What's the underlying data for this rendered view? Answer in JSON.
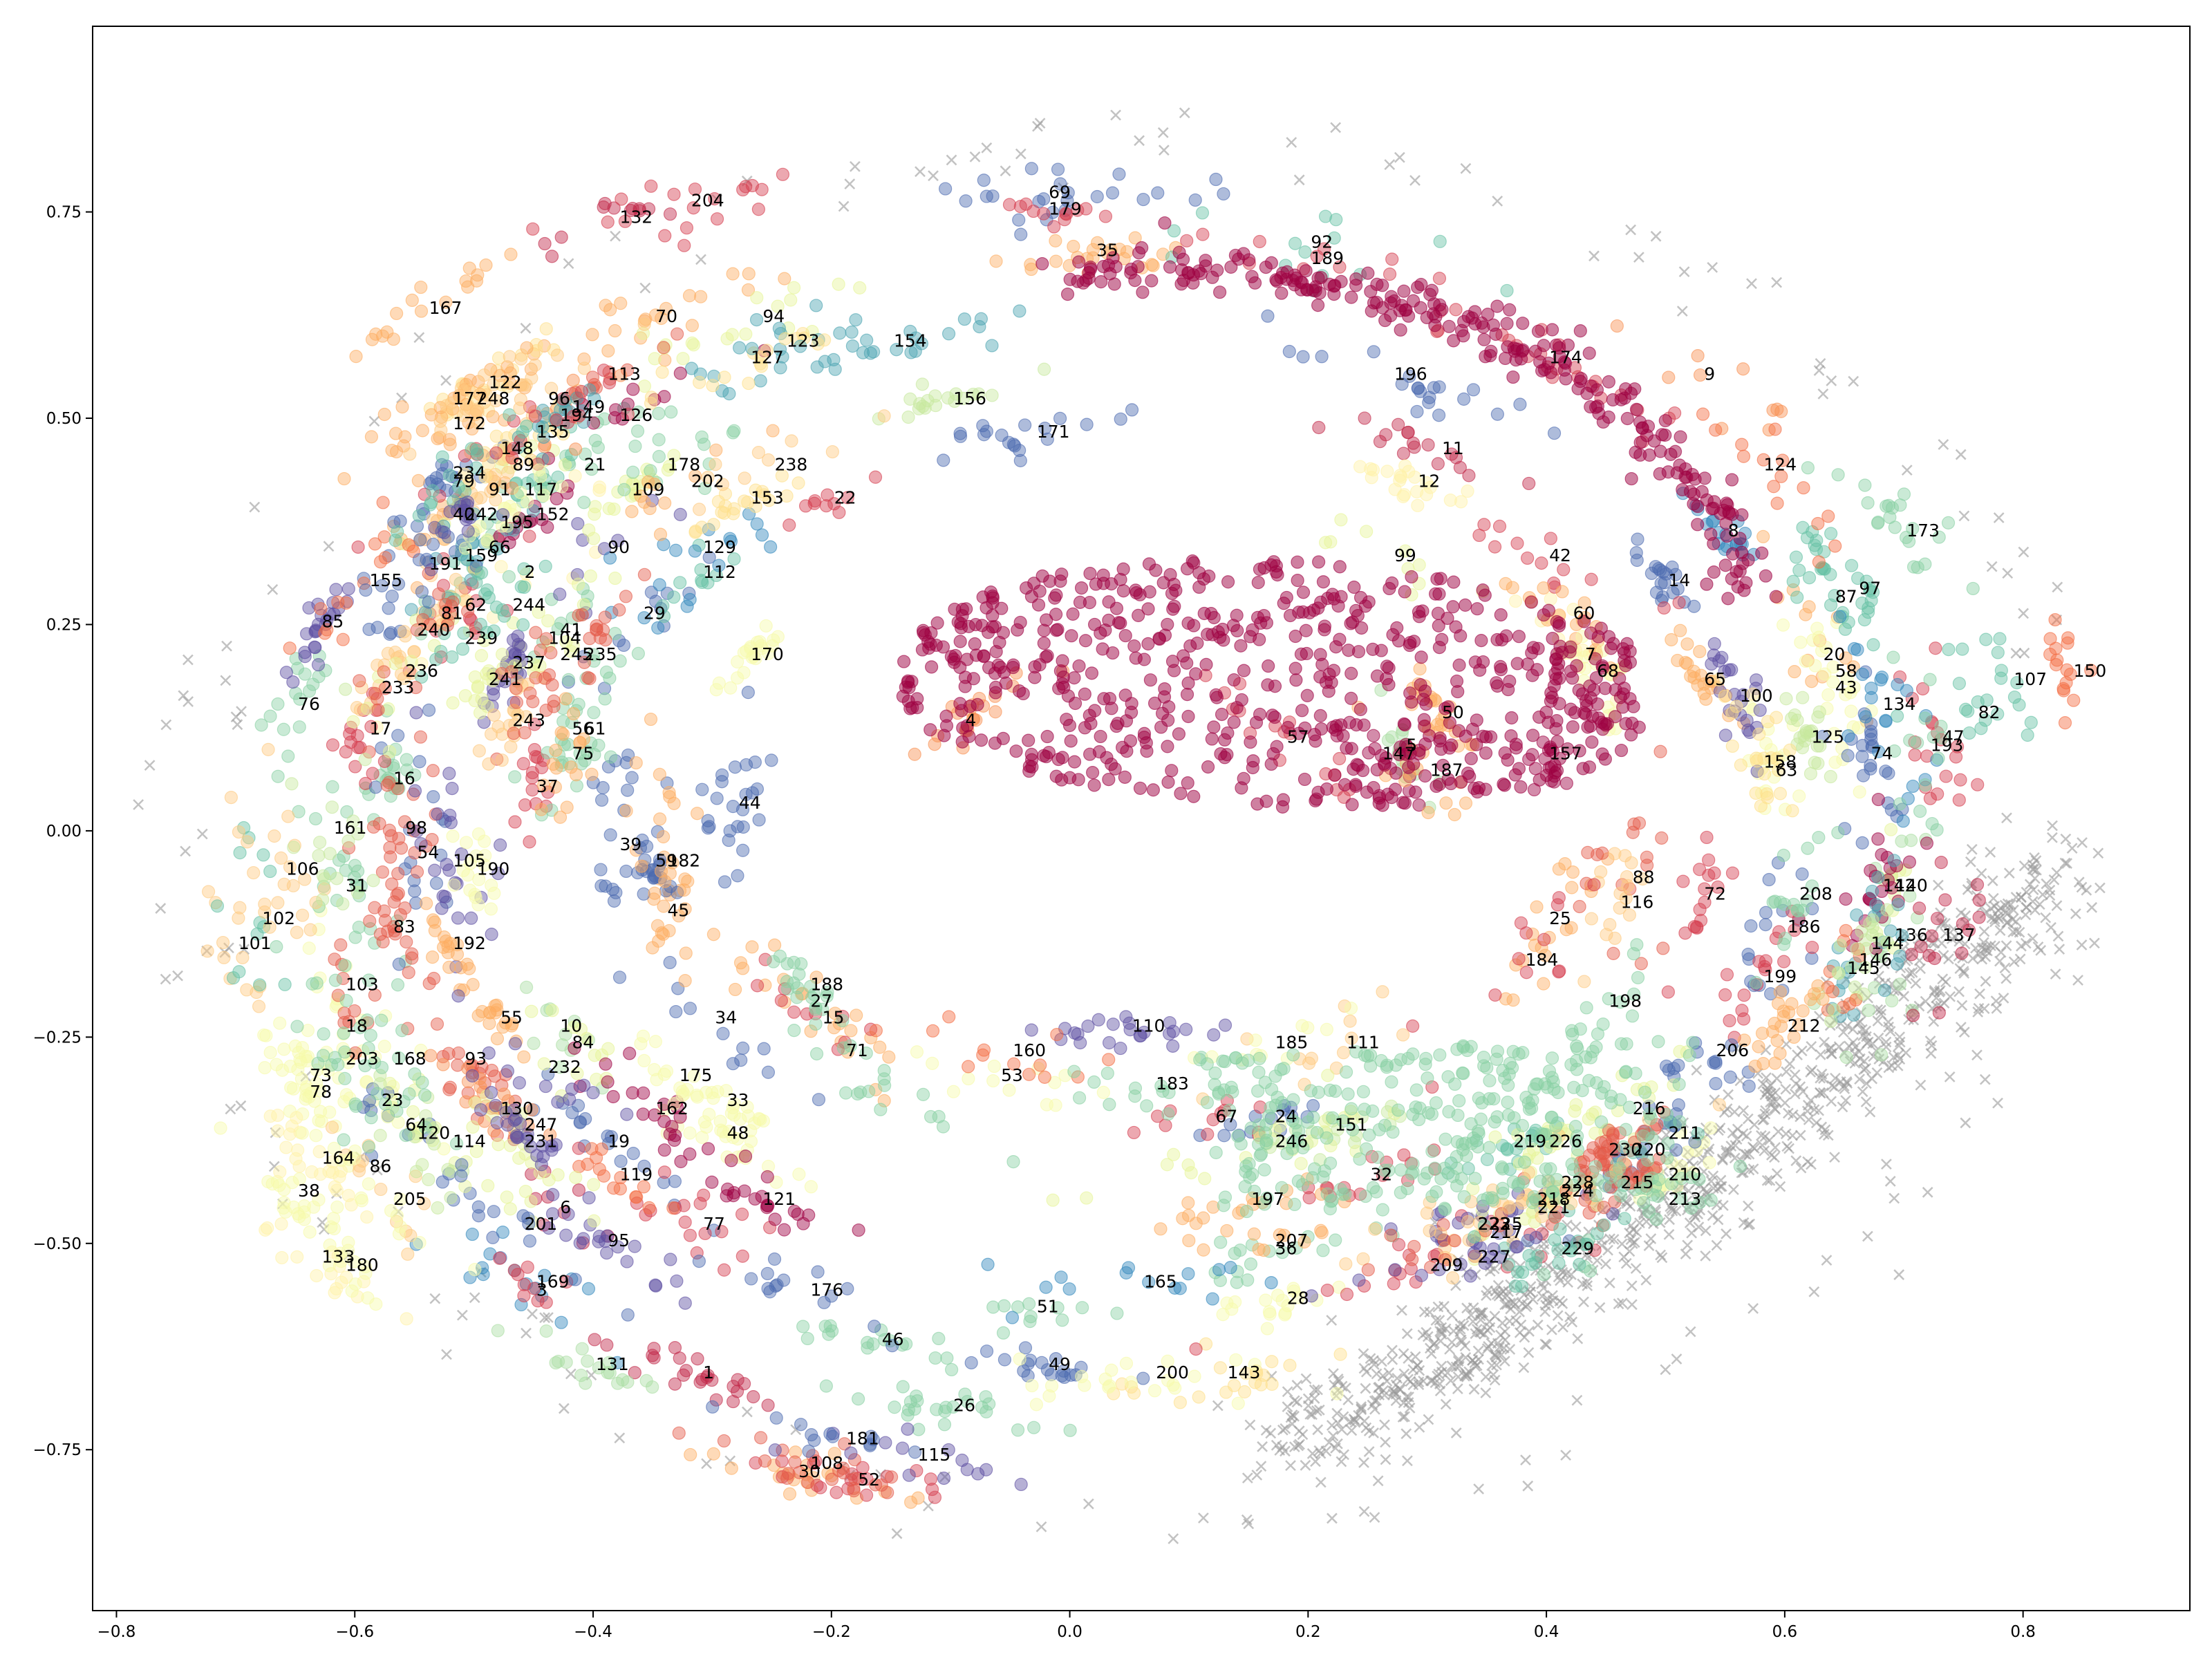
{
  "chart_data": {
    "type": "scatter",
    "title": "",
    "xlabel": "",
    "ylabel": "",
    "xlim": [
      -0.82,
      0.94
    ],
    "ylim": [
      -0.945,
      0.975
    ],
    "xticks": [
      -0.8,
      -0.6,
      -0.4,
      -0.2,
      0.0,
      0.2,
      0.4,
      0.6,
      0.8
    ],
    "xtick_labels": [
      "−0.8",
      "−0.6",
      "−0.4",
      "−0.2",
      "0.0",
      "0.2",
      "0.4",
      "0.6",
      "0.8"
    ],
    "yticks": [
      -0.75,
      -0.5,
      -0.25,
      0.0,
      0.25,
      0.5,
      0.75
    ],
    "ytick_labels": [
      "−0.75",
      "−0.50",
      "−0.25",
      "0.00",
      "0.25",
      "0.50",
      "0.75"
    ],
    "grid": false,
    "legend": "none",
    "noise_marker": "x",
    "noise_color": "#9a9a9a",
    "palette": [
      "#9e0142",
      "#c2294a",
      "#d53e4f",
      "#e45a49",
      "#f46d43",
      "#f99153",
      "#fdae61",
      "#fec980",
      "#fee08b",
      "#fff1a8",
      "#f6faaa",
      "#e6f598",
      "#c7e89e",
      "#abdda4",
      "#89d0a4",
      "#66c2a5",
      "#4ba4b1",
      "#3288bd",
      "#4c6bb0",
      "#5e4fa2"
    ],
    "clusters": [
      {
        "label": "1",
        "x": -0.31,
        "y": -0.66
      },
      {
        "label": "2",
        "x": -0.46,
        "y": 0.31
      },
      {
        "label": "3",
        "x": -0.45,
        "y": -0.56
      },
      {
        "label": "4",
        "x": -0.09,
        "y": 0.13
      },
      {
        "label": "5",
        "x": 0.28,
        "y": 0.1
      },
      {
        "label": "6",
        "x": -0.43,
        "y": -0.46
      },
      {
        "label": "7",
        "x": 0.43,
        "y": 0.21
      },
      {
        "label": "8",
        "x": 0.55,
        "y": 0.36
      },
      {
        "label": "9",
        "x": 0.53,
        "y": 0.55
      },
      {
        "label": "10",
        "x": -0.43,
        "y": -0.24
      },
      {
        "label": "11",
        "x": 0.31,
        "y": 0.46
      },
      {
        "label": "12",
        "x": 0.29,
        "y": 0.42
      },
      {
        "label": "14",
        "x": 0.5,
        "y": 0.3
      },
      {
        "label": "15",
        "x": -0.21,
        "y": -0.23
      },
      {
        "label": "16",
        "x": -0.57,
        "y": 0.06
      },
      {
        "label": "17",
        "x": -0.59,
        "y": 0.12
      },
      {
        "label": "18",
        "x": -0.61,
        "y": -0.24
      },
      {
        "label": "19",
        "x": -0.39,
        "y": -0.38
      },
      {
        "label": "20",
        "x": 0.63,
        "y": 0.21
      },
      {
        "label": "21",
        "x": -0.41,
        "y": 0.44
      },
      {
        "label": "22",
        "x": -0.2,
        "y": 0.4
      },
      {
        "label": "23",
        "x": -0.58,
        "y": -0.33
      },
      {
        "label": "24",
        "x": 0.17,
        "y": -0.35
      },
      {
        "label": "25",
        "x": 0.4,
        "y": -0.11
      },
      {
        "label": "26",
        "x": -0.1,
        "y": -0.7
      },
      {
        "label": "27",
        "x": -0.22,
        "y": -0.21
      },
      {
        "label": "28",
        "x": 0.18,
        "y": -0.57
      },
      {
        "label": "29",
        "x": -0.36,
        "y": 0.26
      },
      {
        "label": "30",
        "x": -0.23,
        "y": -0.78
      },
      {
        "label": "31",
        "x": -0.61,
        "y": -0.07
      },
      {
        "label": "32",
        "x": 0.25,
        "y": -0.42
      },
      {
        "label": "33",
        "x": -0.29,
        "y": -0.33
      },
      {
        "label": "34",
        "x": -0.3,
        "y": -0.23
      },
      {
        "label": "35",
        "x": 0.02,
        "y": 0.7
      },
      {
        "label": "36",
        "x": 0.17,
        "y": -0.51
      },
      {
        "label": "37",
        "x": -0.45,
        "y": 0.05
      },
      {
        "label": "38",
        "x": -0.65,
        "y": -0.44
      },
      {
        "label": "39",
        "x": -0.38,
        "y": -0.02
      },
      {
        "label": "40",
        "x": -0.52,
        "y": 0.38
      },
      {
        "label": "41",
        "x": -0.43,
        "y": 0.24
      },
      {
        "label": "42",
        "x": 0.4,
        "y": 0.33
      },
      {
        "label": "43",
        "x": 0.64,
        "y": 0.17
      },
      {
        "label": "44",
        "x": -0.28,
        "y": 0.03
      },
      {
        "label": "45",
        "x": -0.34,
        "y": -0.1
      },
      {
        "label": "46",
        "x": -0.16,
        "y": -0.62
      },
      {
        "label": "47",
        "x": 0.73,
        "y": 0.11
      },
      {
        "label": "48",
        "x": -0.29,
        "y": -0.37
      },
      {
        "label": "49",
        "x": -0.02,
        "y": -0.65
      },
      {
        "label": "50",
        "x": 0.31,
        "y": 0.14
      },
      {
        "label": "51",
        "x": -0.03,
        "y": -0.58
      },
      {
        "label": "52",
        "x": -0.18,
        "y": -0.79
      },
      {
        "label": "53",
        "x": -0.06,
        "y": -0.3
      },
      {
        "label": "54",
        "x": -0.55,
        "y": -0.03
      },
      {
        "label": "55",
        "x": -0.48,
        "y": -0.23
      },
      {
        "label": "56",
        "x": -0.42,
        "y": 0.12
      },
      {
        "label": "57",
        "x": 0.18,
        "y": 0.11
      },
      {
        "label": "58",
        "x": 0.64,
        "y": 0.19
      },
      {
        "label": "59",
        "x": -0.35,
        "y": -0.04
      },
      {
        "label": "60",
        "x": 0.42,
        "y": 0.26
      },
      {
        "label": "61",
        "x": -0.41,
        "y": 0.12
      },
      {
        "label": "62",
        "x": -0.51,
        "y": 0.27
      },
      {
        "label": "63",
        "x": 0.59,
        "y": 0.07
      },
      {
        "label": "64",
        "x": -0.56,
        "y": -0.36
      },
      {
        "label": "65",
        "x": 0.53,
        "y": 0.18
      },
      {
        "label": "66",
        "x": -0.49,
        "y": 0.34
      },
      {
        "label": "67",
        "x": 0.12,
        "y": -0.35
      },
      {
        "label": "68",
        "x": 0.44,
        "y": 0.19
      },
      {
        "label": "69",
        "x": -0.02,
        "y": 0.77
      },
      {
        "label": "70",
        "x": -0.35,
        "y": 0.62
      },
      {
        "label": "71",
        "x": -0.19,
        "y": -0.27
      },
      {
        "label": "72",
        "x": 0.53,
        "y": -0.08
      },
      {
        "label": "73",
        "x": -0.64,
        "y": -0.3
      },
      {
        "label": "74",
        "x": 0.67,
        "y": 0.09
      },
      {
        "label": "75",
        "x": -0.42,
        "y": 0.09
      },
      {
        "label": "76",
        "x": -0.65,
        "y": 0.15
      },
      {
        "label": "77",
        "x": -0.31,
        "y": -0.48
      },
      {
        "label": "78",
        "x": -0.64,
        "y": -0.32
      },
      {
        "label": "79",
        "x": -0.52,
        "y": 0.42
      },
      {
        "label": "81",
        "x": -0.53,
        "y": 0.26
      },
      {
        "label": "82",
        "x": 0.76,
        "y": 0.14
      },
      {
        "label": "83",
        "x": -0.57,
        "y": -0.12
      },
      {
        "label": "84",
        "x": -0.42,
        "y": -0.26
      },
      {
        "label": "85",
        "x": -0.63,
        "y": 0.25
      },
      {
        "label": "86",
        "x": -0.59,
        "y": -0.41
      },
      {
        "label": "87",
        "x": 0.64,
        "y": 0.28
      },
      {
        "label": "88",
        "x": 0.47,
        "y": -0.06
      },
      {
        "label": "89",
        "x": -0.47,
        "y": 0.44
      },
      {
        "label": "90",
        "x": -0.39,
        "y": 0.34
      },
      {
        "label": "91",
        "x": -0.49,
        "y": 0.41
      },
      {
        "label": "92",
        "x": 0.2,
        "y": 0.71
      },
      {
        "label": "93",
        "x": -0.51,
        "y": -0.28
      },
      {
        "label": "94",
        "x": -0.26,
        "y": 0.62
      },
      {
        "label": "95",
        "x": -0.39,
        "y": -0.5
      },
      {
        "label": "96",
        "x": -0.44,
        "y": 0.52
      },
      {
        "label": "97",
        "x": 0.66,
        "y": 0.29
      },
      {
        "label": "98",
        "x": -0.56,
        "y": 0.0
      },
      {
        "label": "99",
        "x": 0.27,
        "y": 0.33
      },
      {
        "label": "100",
        "x": 0.56,
        "y": 0.16
      },
      {
        "label": "101",
        "x": -0.7,
        "y": -0.14
      },
      {
        "label": "102",
        "x": -0.68,
        "y": -0.11
      },
      {
        "label": "103",
        "x": -0.61,
        "y": -0.19
      },
      {
        "label": "104",
        "x": -0.44,
        "y": 0.23
      },
      {
        "label": "105",
        "x": -0.52,
        "y": -0.04
      },
      {
        "label": "106",
        "x": -0.66,
        "y": -0.05
      },
      {
        "label": "107",
        "x": 0.79,
        "y": 0.18
      },
      {
        "label": "108",
        "x": -0.22,
        "y": -0.77
      },
      {
        "label": "109",
        "x": -0.37,
        "y": 0.41
      },
      {
        "label": "110",
        "x": 0.05,
        "y": -0.24
      },
      {
        "label": "111",
        "x": 0.23,
        "y": -0.26
      },
      {
        "label": "112",
        "x": -0.31,
        "y": 0.31
      },
      {
        "label": "113",
        "x": -0.39,
        "y": 0.55
      },
      {
        "label": "114",
        "x": -0.52,
        "y": -0.38
      },
      {
        "label": "115",
        "x": -0.13,
        "y": -0.76
      },
      {
        "label": "116",
        "x": 0.46,
        "y": -0.09
      },
      {
        "label": "117",
        "x": -0.46,
        "y": 0.41
      },
      {
        "label": "119",
        "x": -0.38,
        "y": -0.42
      },
      {
        "label": "120",
        "x": -0.55,
        "y": -0.37
      },
      {
        "label": "121",
        "x": -0.26,
        "y": -0.45
      },
      {
        "label": "122",
        "x": -0.49,
        "y": 0.54
      },
      {
        "label": "123",
        "x": -0.24,
        "y": 0.59
      },
      {
        "label": "124",
        "x": 0.58,
        "y": 0.44
      },
      {
        "label": "125",
        "x": 0.62,
        "y": 0.11
      },
      {
        "label": "126",
        "x": -0.38,
        "y": 0.5
      },
      {
        "label": "127",
        "x": -0.27,
        "y": 0.57
      },
      {
        "label": "129",
        "x": -0.31,
        "y": 0.34
      },
      {
        "label": "130",
        "x": -0.48,
        "y": -0.34
      },
      {
        "label": "131",
        "x": -0.4,
        "y": -0.65
      },
      {
        "label": "132",
        "x": -0.38,
        "y": 0.74
      },
      {
        "label": "133",
        "x": -0.63,
        "y": -0.52
      },
      {
        "label": "134",
        "x": 0.68,
        "y": 0.15
      },
      {
        "label": "135",
        "x": -0.45,
        "y": 0.48
      },
      {
        "label": "136",
        "x": 0.69,
        "y": -0.13
      },
      {
        "label": "137",
        "x": 0.73,
        "y": -0.13
      },
      {
        "label": "140",
        "x": 0.69,
        "y": -0.07
      },
      {
        "label": "142",
        "x": 0.68,
        "y": -0.07
      },
      {
        "label": "143",
        "x": 0.13,
        "y": -0.66
      },
      {
        "label": "144",
        "x": 0.67,
        "y": -0.14
      },
      {
        "label": "145",
        "x": 0.65,
        "y": -0.17
      },
      {
        "label": "146",
        "x": 0.66,
        "y": -0.16
      },
      {
        "label": "147",
        "x": 0.26,
        "y": 0.09
      },
      {
        "label": "148",
        "x": -0.48,
        "y": 0.46
      },
      {
        "label": "149",
        "x": -0.42,
        "y": 0.51
      },
      {
        "label": "150",
        "x": 0.84,
        "y": 0.19
      },
      {
        "label": "151",
        "x": 0.22,
        "y": -0.36
      },
      {
        "label": "152",
        "x": -0.45,
        "y": 0.38
      },
      {
        "label": "153",
        "x": -0.27,
        "y": 0.4
      },
      {
        "label": "154",
        "x": -0.15,
        "y": 0.59
      },
      {
        "label": "155",
        "x": -0.59,
        "y": 0.3
      },
      {
        "label": "156",
        "x": -0.1,
        "y": 0.52
      },
      {
        "label": "157",
        "x": 0.4,
        "y": 0.09
      },
      {
        "label": "158",
        "x": 0.58,
        "y": 0.08
      },
      {
        "label": "159",
        "x": -0.51,
        "y": 0.33
      },
      {
        "label": "160",
        "x": -0.05,
        "y": -0.27
      },
      {
        "label": "161",
        "x": -0.62,
        "y": -0.0
      },
      {
        "label": "162",
        "x": -0.35,
        "y": -0.34
      },
      {
        "label": "164",
        "x": -0.63,
        "y": -0.4
      },
      {
        "label": "165",
        "x": 0.06,
        "y": -0.55
      },
      {
        "label": "167",
        "x": -0.54,
        "y": 0.63
      },
      {
        "label": "168",
        "x": -0.57,
        "y": -0.28
      },
      {
        "label": "169",
        "x": -0.45,
        "y": -0.55
      },
      {
        "label": "170",
        "x": -0.27,
        "y": 0.21
      },
      {
        "label": "171",
        "x": -0.03,
        "y": 0.48
      },
      {
        "label": "172",
        "x": -0.52,
        "y": 0.49
      },
      {
        "label": "173",
        "x": 0.7,
        "y": 0.36
      },
      {
        "label": "174",
        "x": 0.4,
        "y": 0.57
      },
      {
        "label": "175",
        "x": -0.33,
        "y": -0.3
      },
      {
        "label": "176",
        "x": -0.22,
        "y": -0.56
      },
      {
        "label": "177",
        "x": -0.52,
        "y": 0.52
      },
      {
        "label": "178",
        "x": -0.34,
        "y": 0.44
      },
      {
        "label": "179",
        "x": -0.02,
        "y": 0.75
      },
      {
        "label": "180",
        "x": -0.61,
        "y": -0.53
      },
      {
        "label": "181",
        "x": -0.19,
        "y": -0.74
      },
      {
        "label": "182",
        "x": -0.34,
        "y": -0.04
      },
      {
        "label": "183",
        "x": 0.07,
        "y": -0.31
      },
      {
        "label": "184",
        "x": 0.38,
        "y": -0.16
      },
      {
        "label": "185",
        "x": 0.17,
        "y": -0.26
      },
      {
        "label": "186",
        "x": 0.6,
        "y": -0.12
      },
      {
        "label": "187",
        "x": 0.3,
        "y": 0.07
      },
      {
        "label": "188",
        "x": -0.22,
        "y": -0.19
      },
      {
        "label": "189",
        "x": 0.2,
        "y": 0.69
      },
      {
        "label": "190",
        "x": -0.5,
        "y": -0.05
      },
      {
        "label": "191",
        "x": -0.54,
        "y": 0.32
      },
      {
        "label": "192",
        "x": -0.52,
        "y": -0.14
      },
      {
        "label": "193",
        "x": 0.72,
        "y": 0.1
      },
      {
        "label": "194",
        "x": -0.43,
        "y": 0.5
      },
      {
        "label": "195",
        "x": -0.48,
        "y": 0.37
      },
      {
        "label": "196",
        "x": 0.27,
        "y": 0.55
      },
      {
        "label": "197",
        "x": 0.15,
        "y": -0.45
      },
      {
        "label": "198",
        "x": 0.45,
        "y": -0.21
      },
      {
        "label": "199",
        "x": 0.58,
        "y": -0.18
      },
      {
        "label": "200",
        "x": 0.07,
        "y": -0.66
      },
      {
        "label": "201",
        "x": -0.46,
        "y": -0.48
      },
      {
        "label": "202",
        "x": -0.32,
        "y": 0.42
      },
      {
        "label": "203",
        "x": -0.61,
        "y": -0.28
      },
      {
        "label": "204",
        "x": -0.32,
        "y": 0.76
      },
      {
        "label": "205",
        "x": -0.57,
        "y": -0.45
      },
      {
        "label": "206",
        "x": 0.54,
        "y": -0.27
      },
      {
        "label": "207",
        "x": 0.17,
        "y": -0.5
      },
      {
        "label": "208",
        "x": 0.61,
        "y": -0.08
      },
      {
        "label": "209",
        "x": 0.3,
        "y": -0.53
      },
      {
        "label": "210",
        "x": 0.5,
        "y": -0.42
      },
      {
        "label": "211",
        "x": 0.5,
        "y": -0.37
      },
      {
        "label": "212",
        "x": 0.6,
        "y": -0.24
      },
      {
        "label": "213",
        "x": 0.5,
        "y": -0.45
      },
      {
        "label": "215",
        "x": 0.46,
        "y": -0.43
      },
      {
        "label": "216",
        "x": 0.47,
        "y": -0.34
      },
      {
        "label": "217",
        "x": 0.35,
        "y": -0.49
      },
      {
        "label": "218",
        "x": 0.39,
        "y": -0.45
      },
      {
        "label": "219",
        "x": 0.37,
        "y": -0.38
      },
      {
        "label": "220",
        "x": 0.47,
        "y": -0.39
      },
      {
        "label": "221",
        "x": 0.39,
        "y": -0.46
      },
      {
        "label": "222",
        "x": 0.34,
        "y": -0.48
      },
      {
        "label": "223",
        "x": 0.34,
        "y": -0.48
      },
      {
        "label": "224",
        "x": 0.41,
        "y": -0.44
      },
      {
        "label": "225",
        "x": 0.35,
        "y": -0.48
      },
      {
        "label": "226",
        "x": 0.4,
        "y": -0.38
      },
      {
        "label": "227",
        "x": 0.34,
        "y": -0.52
      },
      {
        "label": "228",
        "x": 0.41,
        "y": -0.43
      },
      {
        "label": "229",
        "x": 0.41,
        "y": -0.51
      },
      {
        "label": "230",
        "x": 0.45,
        "y": -0.39
      },
      {
        "label": "231",
        "x": -0.46,
        "y": -0.38
      },
      {
        "label": "232",
        "x": -0.44,
        "y": -0.29
      },
      {
        "label": "233",
        "x": -0.58,
        "y": 0.17
      },
      {
        "label": "234",
        "x": -0.52,
        "y": 0.43
      },
      {
        "label": "235",
        "x": -0.41,
        "y": 0.21
      },
      {
        "label": "236",
        "x": -0.56,
        "y": 0.19
      },
      {
        "label": "237",
        "x": -0.47,
        "y": 0.2
      },
      {
        "label": "238",
        "x": -0.25,
        "y": 0.44
      },
      {
        "label": "239",
        "x": -0.51,
        "y": 0.23
      },
      {
        "label": "240",
        "x": -0.55,
        "y": 0.24
      },
      {
        "label": "241",
        "x": -0.49,
        "y": 0.18
      },
      {
        "label": "242",
        "x": -0.51,
        "y": 0.38
      },
      {
        "label": "243",
        "x": -0.47,
        "y": 0.13
      },
      {
        "label": "244",
        "x": -0.47,
        "y": 0.27
      },
      {
        "label": "245",
        "x": -0.43,
        "y": 0.21
      },
      {
        "label": "246",
        "x": 0.17,
        "y": -0.38
      },
      {
        "label": "247",
        "x": -0.46,
        "y": -0.36
      },
      {
        "label": "248",
        "x": -0.5,
        "y": 0.52
      }
    ]
  }
}
